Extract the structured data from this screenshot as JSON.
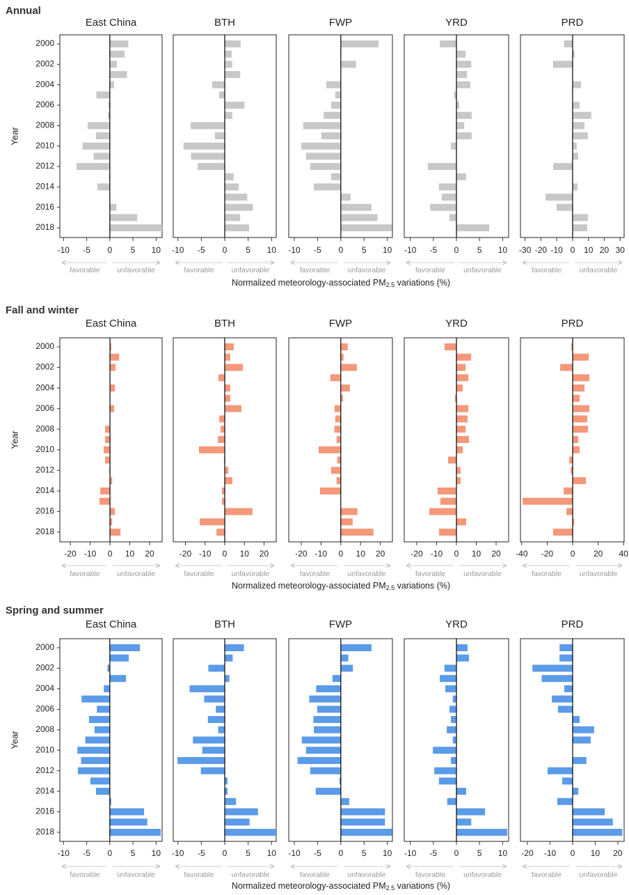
{
  "chart_data": [
    {
      "type": "bar",
      "title": "Annual",
      "y_label": "Year",
      "color": "#c8c8c8",
      "x_label": "Normalized meteorology-associated PM",
      "x_label_sub": "2.5",
      "x_label_end": " variations (%)",
      "favorable_label": "favorable",
      "unfavorable_label": "unfavorable",
      "categories": [
        "2000",
        null,
        "2002",
        null,
        "2004",
        null,
        "2006",
        null,
        "2008",
        null,
        "2010",
        null,
        "2012",
        null,
        "2014",
        null,
        "2016",
        null,
        "2018"
      ],
      "panels": [
        {
          "title": "East China",
          "xlim": [
            -10.8,
            11.3
          ],
          "xticks": [
            -10,
            -5,
            0,
            5,
            10
          ],
          "values": [
            4.0,
            3.2,
            1.5,
            3.7,
            0.9,
            -2.9,
            -0.3,
            -0.4,
            -4.8,
            -3.0,
            -5.9,
            -3.5,
            -7.2,
            -0.2,
            -2.7,
            0.1,
            1.4,
            5.9,
            11.3
          ]
        },
        {
          "title": "BTH",
          "xlim": [
            -11,
            11
          ],
          "xticks": [
            -10,
            -5,
            0,
            5,
            10
          ],
          "values": [
            3.4,
            1.5,
            1.6,
            3.3,
            -2.7,
            -1.2,
            4.2,
            1.6,
            -7.3,
            -2.1,
            -8.8,
            -7.2,
            -5.8,
            1.9,
            3.0,
            4.8,
            6.0,
            3.3,
            5.2
          ]
        },
        {
          "title": "FWP",
          "xlim": [
            -11.2,
            11.1
          ],
          "xticks": [
            -10,
            -5,
            0,
            5,
            10
          ],
          "values": [
            8.1,
            -0.1,
            3.3,
            0,
            -3.1,
            -1.2,
            -2.1,
            -3.7,
            -8.1,
            -4.2,
            -8.5,
            -7.5,
            -6.6,
            -2.1,
            -5.8,
            2.1,
            6.6,
            7.9,
            11
          ]
        },
        {
          "title": "YRD",
          "xlim": [
            -11.3,
            11.3
          ],
          "xticks": [
            -10,
            -5,
            0,
            5,
            10
          ],
          "values": [
            -3.6,
            2.0,
            3.2,
            2.3,
            3.0,
            -0.5,
            0.6,
            3.3,
            1.7,
            3.3,
            -1.2,
            0,
            -6.2,
            2.1,
            -3.8,
            -3.2,
            -5.7,
            -1.5,
            7.1
          ]
        },
        {
          "title": "PRD",
          "xlim": [
            -32.9,
            32.5
          ],
          "xticks": [
            -30,
            -20,
            -10,
            0,
            10,
            20,
            30
          ],
          "values": [
            -5.3,
            1.3,
            -12.3,
            0,
            5.3,
            0,
            4.4,
            11.8,
            7.5,
            9.6,
            2.6,
            3.5,
            -12.3,
            0,
            3.1,
            -17.1,
            -10.1,
            9.6,
            9.2
          ]
        }
      ]
    },
    {
      "type": "bar",
      "title": "Fall and winter",
      "y_label": "Year",
      "color": "#f4987a",
      "x_label": "Normalized meteorology-associated PM",
      "x_label_sub": "2.5",
      "x_label_end": " variations (%)",
      "favorable_label": "favorable",
      "unfavorable_label": "unfavorable",
      "categories": [
        "2000",
        null,
        "2002",
        null,
        "2004",
        null,
        "2006",
        null,
        "2008",
        null,
        "2010",
        null,
        "2012",
        null,
        "2014",
        null,
        "2016",
        null,
        "2018"
      ],
      "panels": [
        {
          "title": "East China",
          "xlim": [
            -25.3,
            26.3
          ],
          "xticks": [
            -20,
            -10,
            0,
            10,
            20
          ],
          "values": [
            0.7,
            4.6,
            2.8,
            0,
            2.5,
            0,
            2.1,
            0,
            -2.5,
            -2.5,
            -3.2,
            -2.5,
            -0.4,
            1.1,
            -4.9,
            -5.3,
            2.5,
            1.1,
            5.3
          ]
        },
        {
          "title": "BTH",
          "xlim": [
            -26.2,
            26.2
          ],
          "xticks": [
            -20,
            -10,
            0,
            10,
            20
          ],
          "values": [
            4.6,
            2.8,
            9.2,
            -3.2,
            2.8,
            2.8,
            8.5,
            -2.8,
            -2.1,
            -3.5,
            -13.1,
            -0.4,
            1.8,
            3.9,
            -1.4,
            -1.4,
            14.1,
            -12.7,
            -4.2
          ]
        },
        {
          "title": "FWP",
          "xlim": [
            -26.3,
            26.1
          ],
          "xticks": [
            -20,
            -10,
            0,
            10,
            20
          ],
          "values": [
            3.5,
            1.4,
            8.1,
            -5.3,
            4.6,
            1.1,
            -3.2,
            -2.8,
            -3.2,
            -2.1,
            -11.2,
            -1.8,
            -4.9,
            -2.1,
            -10.5,
            0,
            8.4,
            6.0,
            16.5
          ]
        },
        {
          "title": "YRD",
          "xlim": [
            -26.3,
            26.3
          ],
          "xticks": [
            -20,
            -10,
            0,
            10,
            20
          ],
          "values": [
            -6.0,
            7.4,
            4.6,
            6.0,
            3.2,
            -0.7,
            6.0,
            5.6,
            4.6,
            6.3,
            3.2,
            -4.2,
            2.1,
            2.1,
            -9.5,
            -8.1,
            -13.7,
            4.9,
            -8.8
          ]
        },
        {
          "title": "PRD",
          "xlim": [
            -41,
            40.4
          ],
          "xticks": [
            -40,
            -20,
            0,
            20,
            40
          ],
          "values": [
            -1.1,
            12.6,
            -9.8,
            13.1,
            9.3,
            5.5,
            13.1,
            11.5,
            12.0,
            4.4,
            5.5,
            -2.7,
            -1.6,
            10.4,
            -7.1,
            -39.3,
            -4.9,
            1.1,
            -15.3
          ]
        }
      ]
    },
    {
      "type": "bar",
      "title": "Spring and summer",
      "y_label": "Year",
      "color": "#5b9be8",
      "x_label": "Normalized meteorology-associated PM",
      "x_label_sub": "2.5",
      "x_label_end": " variations (%)",
      "favorable_label": "favorable",
      "unfavorable_label": "unfavorable",
      "categories": [
        "2000",
        null,
        "2002",
        null,
        "2004",
        null,
        "2006",
        null,
        "2008",
        null,
        "2010",
        null,
        "2012",
        null,
        "2014",
        null,
        "2016",
        null,
        "2018"
      ],
      "panels": [
        {
          "title": "East China",
          "xlim": [
            -10.8,
            11.3
          ],
          "xticks": [
            -10,
            -5,
            0,
            5,
            10
          ],
          "values": [
            6.5,
            4.1,
            -0.5,
            3.5,
            -1.3,
            -6.1,
            -2.8,
            -4.5,
            -3.3,
            -5.3,
            -7.0,
            -6.2,
            -6.9,
            -4.2,
            -3.0,
            0.3,
            7.4,
            8.1,
            11
          ]
        },
        {
          "title": "BTH",
          "xlim": [
            -11,
            11
          ],
          "xticks": [
            -10,
            -5,
            0,
            5,
            10
          ],
          "values": [
            4.1,
            1.7,
            -3.5,
            1.0,
            -7.5,
            -4.4,
            -1.9,
            -3.6,
            -1.4,
            -6.8,
            -4.8,
            -10.1,
            -5.1,
            0.6,
            0.6,
            2.4,
            7.1,
            5.3,
            11
          ]
        },
        {
          "title": "FWP",
          "xlim": [
            -11.2,
            11.1
          ],
          "xticks": [
            -10,
            -5,
            0,
            5,
            10
          ],
          "values": [
            6.6,
            1.6,
            2.6,
            -1.8,
            -5.3,
            -6.8,
            -5.1,
            -5.9,
            -5.8,
            -8.4,
            -7.5,
            -9.3,
            -6.6,
            -0.3,
            -5.4,
            1.8,
            9.5,
            9.5,
            11
          ]
        },
        {
          "title": "YRD",
          "xlim": [
            -11.3,
            11.3
          ],
          "xticks": [
            -10,
            -5,
            0,
            5,
            10
          ],
          "values": [
            2.4,
            2.7,
            -2.6,
            -3.6,
            -2.4,
            -0.8,
            -1.5,
            -1.2,
            -2.1,
            -0.8,
            -5.1,
            -1.2,
            -4.8,
            -3.8,
            2.1,
            -2.0,
            6.2,
            3.2,
            11
          ]
        },
        {
          "title": "PRD",
          "xlim": [
            -23.1,
            22.8
          ],
          "xticks": [
            -20,
            -10,
            0,
            10,
            20
          ],
          "values": [
            -5.8,
            -5.8,
            -17.8,
            -13.7,
            -3.7,
            -9.2,
            -6.5,
            3.1,
            9.5,
            8.0,
            0,
            6.1,
            -11.1,
            -4.6,
            2.5,
            -6.8,
            14.2,
            17.8,
            22
          ]
        }
      ]
    }
  ]
}
